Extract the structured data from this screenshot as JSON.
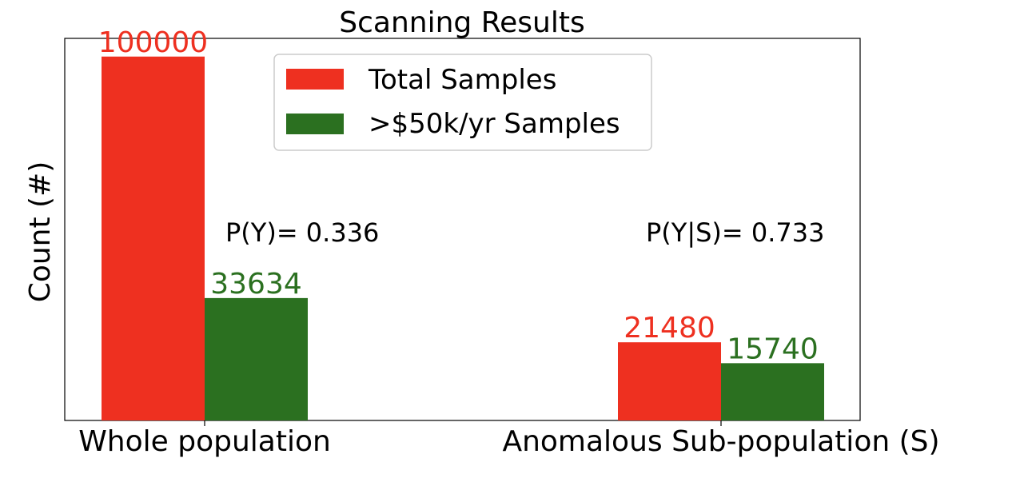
{
  "chart_data": {
    "type": "bar",
    "title": "Scanning Results",
    "xlabel": "",
    "ylabel": "Count (#)",
    "categories": [
      "Whole population",
      "Anomalous Sub-population (S)"
    ],
    "series": [
      {
        "name": "Total Samples",
        "values": [
          100000,
          21480
        ],
        "color": "#ee3020"
      },
      {
        "name": ">$50k/yr Samples",
        "values": [
          33634,
          15740
        ],
        "color": "#2b7020"
      }
    ],
    "ylim": [
      0,
      105000
    ],
    "show_y_ticks": false,
    "grid": false,
    "legend_position": "top-center",
    "annotations": [
      "P(Y)= 0.336",
      "P(Y|S)= 0.733"
    ]
  }
}
